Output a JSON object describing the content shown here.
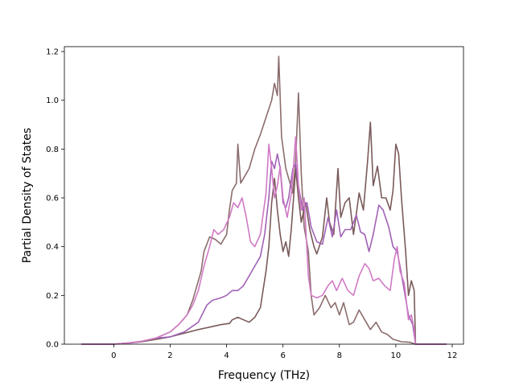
{
  "chart_data": {
    "type": "line",
    "title": "",
    "xlabel": "Frequency (THz)",
    "ylabel": "Partial Density of States",
    "xlim": [
      -1.75,
      12.4
    ],
    "ylim": [
      0.0,
      1.22
    ],
    "grid": false,
    "x_ticks": [
      "0",
      "2",
      "4",
      "6",
      "8",
      "10",
      "12"
    ],
    "y_ticks": [
      "0.0",
      "0.2",
      "0.4",
      "0.6",
      "0.8",
      "1.0",
      "1.2"
    ],
    "series": [
      {
        "color": "#8c6d6d",
        "points": [
          [
            -1.15,
            0
          ],
          [
            0,
            0
          ],
          [
            0.5,
            0.005
          ],
          [
            1,
            0.012
          ],
          [
            1.5,
            0.025
          ],
          [
            2,
            0.05
          ],
          [
            2.3,
            0.08
          ],
          [
            2.6,
            0.12
          ],
          [
            2.8,
            0.18
          ],
          [
            2.9,
            0.22
          ],
          [
            3.1,
            0.3
          ],
          [
            3.2,
            0.38
          ],
          [
            3.4,
            0.44
          ],
          [
            3.6,
            0.43
          ],
          [
            3.8,
            0.41
          ],
          [
            4.0,
            0.45
          ],
          [
            4.1,
            0.55
          ],
          [
            4.2,
            0.63
          ],
          [
            4.35,
            0.66
          ],
          [
            4.4,
            0.82
          ],
          [
            4.5,
            0.66
          ],
          [
            4.6,
            0.68
          ],
          [
            4.8,
            0.72
          ],
          [
            5.0,
            0.8
          ],
          [
            5.2,
            0.86
          ],
          [
            5.4,
            0.93
          ],
          [
            5.6,
            1.0
          ],
          [
            5.7,
            1.07
          ],
          [
            5.8,
            1.02
          ],
          [
            5.85,
            1.18
          ],
          [
            5.95,
            0.85
          ],
          [
            6.1,
            0.72
          ],
          [
            6.2,
            0.68
          ],
          [
            6.35,
            0.62
          ],
          [
            6.45,
            0.75
          ],
          [
            6.55,
            1.03
          ],
          [
            6.65,
            0.7
          ],
          [
            6.75,
            0.48
          ],
          [
            6.9,
            0.38
          ],
          [
            7.0,
            0.2
          ],
          [
            7.1,
            0.12
          ],
          [
            7.3,
            0.15
          ],
          [
            7.5,
            0.2
          ],
          [
            7.7,
            0.15
          ],
          [
            7.85,
            0.17
          ],
          [
            8.0,
            0.12
          ],
          [
            8.15,
            0.17
          ],
          [
            8.35,
            0.08
          ],
          [
            8.5,
            0.09
          ],
          [
            8.7,
            0.14
          ],
          [
            8.9,
            0.1
          ],
          [
            9.1,
            0.06
          ],
          [
            9.3,
            0.09
          ],
          [
            9.5,
            0.05
          ],
          [
            9.7,
            0.04
          ],
          [
            9.9,
            0.02
          ],
          [
            10.2,
            0.01
          ],
          [
            10.5,
            0.008
          ],
          [
            10.7,
            0.0
          ],
          [
            11.8,
            0.0
          ]
        ]
      },
      {
        "color": "#7a5a5a",
        "points": [
          [
            -1.15,
            0
          ],
          [
            0,
            0
          ],
          [
            0.5,
            0.004
          ],
          [
            1,
            0.01
          ],
          [
            1.5,
            0.02
          ],
          [
            2,
            0.03
          ],
          [
            2.5,
            0.045
          ],
          [
            3,
            0.06
          ],
          [
            3.4,
            0.07
          ],
          [
            3.8,
            0.08
          ],
          [
            4.1,
            0.085
          ],
          [
            4.2,
            0.1
          ],
          [
            4.4,
            0.11
          ],
          [
            4.6,
            0.1
          ],
          [
            4.8,
            0.09
          ],
          [
            5.0,
            0.11
          ],
          [
            5.2,
            0.15
          ],
          [
            5.4,
            0.3
          ],
          [
            5.5,
            0.4
          ],
          [
            5.6,
            0.58
          ],
          [
            5.7,
            0.68
          ],
          [
            5.8,
            0.55
          ],
          [
            5.9,
            0.45
          ],
          [
            6.0,
            0.38
          ],
          [
            6.1,
            0.42
          ],
          [
            6.2,
            0.36
          ],
          [
            6.3,
            0.48
          ],
          [
            6.45,
            0.72
          ],
          [
            6.55,
            0.6
          ],
          [
            6.65,
            0.5
          ],
          [
            6.8,
            0.58
          ],
          [
            6.95,
            0.47
          ],
          [
            7.1,
            0.4
          ],
          [
            7.2,
            0.37
          ],
          [
            7.4,
            0.44
          ],
          [
            7.55,
            0.6
          ],
          [
            7.65,
            0.5
          ],
          [
            7.8,
            0.45
          ],
          [
            7.95,
            0.72
          ],
          [
            8.05,
            0.52
          ],
          [
            8.2,
            0.58
          ],
          [
            8.35,
            0.6
          ],
          [
            8.5,
            0.45
          ],
          [
            8.7,
            0.62
          ],
          [
            8.85,
            0.55
          ],
          [
            9.0,
            0.75
          ],
          [
            9.1,
            0.91
          ],
          [
            9.2,
            0.65
          ],
          [
            9.35,
            0.73
          ],
          [
            9.5,
            0.6
          ],
          [
            9.65,
            0.6
          ],
          [
            9.8,
            0.55
          ],
          [
            9.9,
            0.63
          ],
          [
            10.0,
            0.82
          ],
          [
            10.1,
            0.78
          ],
          [
            10.2,
            0.6
          ],
          [
            10.35,
            0.38
          ],
          [
            10.45,
            0.2
          ],
          [
            10.55,
            0.26
          ],
          [
            10.65,
            0.22
          ],
          [
            10.7,
            0.0
          ],
          [
            11.8,
            0.0
          ]
        ]
      },
      {
        "color": "#a162b5",
        "points": [
          [
            -1.15,
            0
          ],
          [
            0,
            0
          ],
          [
            0.5,
            0.005
          ],
          [
            1,
            0.012
          ],
          [
            1.5,
            0.025
          ],
          [
            2,
            0.03
          ],
          [
            2.5,
            0.05
          ],
          [
            3.0,
            0.09
          ],
          [
            3.3,
            0.16
          ],
          [
            3.5,
            0.18
          ],
          [
            3.8,
            0.19
          ],
          [
            4.0,
            0.2
          ],
          [
            4.2,
            0.22
          ],
          [
            4.4,
            0.22
          ],
          [
            4.6,
            0.24
          ],
          [
            4.8,
            0.28
          ],
          [
            5.0,
            0.32
          ],
          [
            5.2,
            0.36
          ],
          [
            5.35,
            0.45
          ],
          [
            5.5,
            0.6
          ],
          [
            5.6,
            0.75
          ],
          [
            5.7,
            0.72
          ],
          [
            5.8,
            0.78
          ],
          [
            5.9,
            0.72
          ],
          [
            6.0,
            0.58
          ],
          [
            6.1,
            0.56
          ],
          [
            6.2,
            0.6
          ],
          [
            6.35,
            0.72
          ],
          [
            6.45,
            0.74
          ],
          [
            6.55,
            0.65
          ],
          [
            6.7,
            0.55
          ],
          [
            6.85,
            0.58
          ],
          [
            7.0,
            0.48
          ],
          [
            7.2,
            0.42
          ],
          [
            7.4,
            0.41
          ],
          [
            7.6,
            0.52
          ],
          [
            7.75,
            0.44
          ],
          [
            7.9,
            0.55
          ],
          [
            8.05,
            0.44
          ],
          [
            8.2,
            0.47
          ],
          [
            8.4,
            0.47
          ],
          [
            8.6,
            0.53
          ],
          [
            8.75,
            0.46
          ],
          [
            8.9,
            0.45
          ],
          [
            9.05,
            0.38
          ],
          [
            9.2,
            0.45
          ],
          [
            9.4,
            0.57
          ],
          [
            9.55,
            0.55
          ],
          [
            9.75,
            0.48
          ],
          [
            9.9,
            0.4
          ],
          [
            10.05,
            0.38
          ],
          [
            10.15,
            0.32
          ],
          [
            10.3,
            0.22
          ],
          [
            10.45,
            0.12
          ],
          [
            10.6,
            0.08
          ],
          [
            10.7,
            0.0
          ],
          [
            11.8,
            0.0
          ]
        ]
      },
      {
        "color": "#d07ac4",
        "points": [
          [
            -1.15,
            0
          ],
          [
            0,
            0
          ],
          [
            0.5,
            0.004
          ],
          [
            1,
            0.012
          ],
          [
            1.5,
            0.025
          ],
          [
            2,
            0.05
          ],
          [
            2.3,
            0.08
          ],
          [
            2.6,
            0.12
          ],
          [
            2.8,
            0.16
          ],
          [
            3.0,
            0.22
          ],
          [
            3.2,
            0.32
          ],
          [
            3.4,
            0.4
          ],
          [
            3.55,
            0.47
          ],
          [
            3.7,
            0.45
          ],
          [
            3.9,
            0.47
          ],
          [
            4.1,
            0.52
          ],
          [
            4.25,
            0.58
          ],
          [
            4.4,
            0.56
          ],
          [
            4.55,
            0.6
          ],
          [
            4.7,
            0.52
          ],
          [
            4.85,
            0.42
          ],
          [
            5.0,
            0.4
          ],
          [
            5.2,
            0.45
          ],
          [
            5.4,
            0.62
          ],
          [
            5.5,
            0.82
          ],
          [
            5.6,
            0.72
          ],
          [
            5.7,
            0.6
          ],
          [
            5.8,
            0.65
          ],
          [
            5.9,
            0.73
          ],
          [
            6.0,
            0.6
          ],
          [
            6.15,
            0.52
          ],
          [
            6.3,
            0.62
          ],
          [
            6.45,
            0.85
          ],
          [
            6.55,
            0.65
          ],
          [
            6.65,
            0.55
          ],
          [
            6.75,
            0.6
          ],
          [
            6.9,
            0.28
          ],
          [
            7.0,
            0.2
          ],
          [
            7.2,
            0.19
          ],
          [
            7.4,
            0.2
          ],
          [
            7.6,
            0.24
          ],
          [
            7.75,
            0.26
          ],
          [
            7.9,
            0.22
          ],
          [
            8.1,
            0.27
          ],
          [
            8.3,
            0.22
          ],
          [
            8.5,
            0.2
          ],
          [
            8.7,
            0.28
          ],
          [
            8.9,
            0.33
          ],
          [
            9.05,
            0.31
          ],
          [
            9.2,
            0.26
          ],
          [
            9.4,
            0.27
          ],
          [
            9.6,
            0.24
          ],
          [
            9.8,
            0.22
          ],
          [
            9.95,
            0.35
          ],
          [
            10.05,
            0.4
          ],
          [
            10.15,
            0.3
          ],
          [
            10.3,
            0.25
          ],
          [
            10.45,
            0.1
          ],
          [
            10.55,
            0.12
          ],
          [
            10.65,
            0.06
          ],
          [
            10.7,
            0.0
          ],
          [
            11.8,
            0.0
          ]
        ]
      }
    ]
  }
}
